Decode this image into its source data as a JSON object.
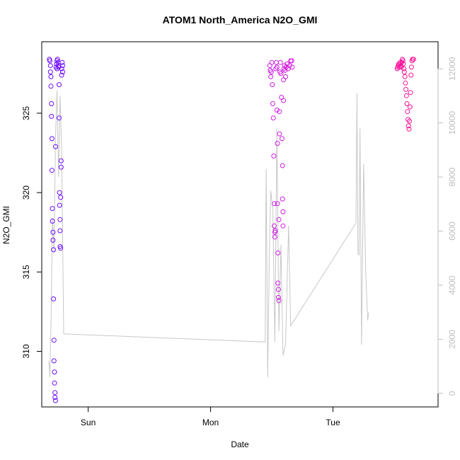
{
  "chart_data": {
    "type": "scatter",
    "title": "ATOM1 North_America N2O_GMI",
    "xlabel": "Date",
    "ylabel": "N2O_GMI",
    "x_ticks": [
      "Sun",
      "Mon",
      "Tue"
    ],
    "x_ticks_hours": [
      24,
      48,
      72
    ],
    "xlim_hours": [
      14.9,
      92.6
    ],
    "y_ticks": [
      310,
      315,
      320,
      325
    ],
    "ylim": [
      306.5,
      329.5
    ],
    "y2_ticks": [
      0,
      2000,
      4000,
      6000,
      8000,
      10000,
      12000
    ],
    "y2lim": [
      -500,
      13000
    ],
    "colors": {
      "start": "#6a0dff",
      "mid": "#c020ff",
      "end": "#ff1493",
      "altitude_line": "#c8c8c8",
      "axis": "#000000",
      "axis_right": "#bebebe"
    },
    "series": [
      {
        "values": [
          {
            "x": 16.4,
            "y": 328.4
          },
          {
            "x": 16.5,
            "y": 328.3
          },
          {
            "x": 16.6,
            "y": 328.0
          },
          {
            "x": 16.6,
            "y": 327.6
          },
          {
            "x": 16.7,
            "y": 327.3
          },
          {
            "x": 16.7,
            "y": 326.7
          },
          {
            "x": 16.8,
            "y": 325.6
          },
          {
            "x": 16.8,
            "y": 324.8
          },
          {
            "x": 16.9,
            "y": 323.4
          },
          {
            "x": 16.9,
            "y": 321.4
          },
          {
            "x": 17.0,
            "y": 319.0
          },
          {
            "x": 17.0,
            "y": 318.2
          },
          {
            "x": 17.1,
            "y": 317.5
          },
          {
            "x": 17.1,
            "y": 317.0
          },
          {
            "x": 17.2,
            "y": 316.4
          },
          {
            "x": 17.2,
            "y": 313.3
          },
          {
            "x": 17.3,
            "y": 310.7
          },
          {
            "x": 17.3,
            "y": 309.4
          },
          {
            "x": 17.4,
            "y": 308.7
          },
          {
            "x": 17.4,
            "y": 308.0
          },
          {
            "x": 17.5,
            "y": 307.4
          },
          {
            "x": 17.5,
            "y": 307.1
          },
          {
            "x": 17.6,
            "y": 306.9
          },
          {
            "x": 17.6,
            "y": 322.9
          },
          {
            "x": 17.7,
            "y": 327.9
          },
          {
            "x": 17.8,
            "y": 328.1
          },
          {
            "x": 17.9,
            "y": 328.3
          },
          {
            "x": 18.0,
            "y": 328.4
          },
          {
            "x": 18.1,
            "y": 328.2
          },
          {
            "x": 18.2,
            "y": 327.9
          },
          {
            "x": 18.3,
            "y": 326.8
          },
          {
            "x": 18.3,
            "y": 324.7
          },
          {
            "x": 18.4,
            "y": 320.0
          },
          {
            "x": 18.4,
            "y": 319.2
          },
          {
            "x": 18.5,
            "y": 318.3
          },
          {
            "x": 18.5,
            "y": 317.6
          },
          {
            "x": 18.5,
            "y": 316.6
          },
          {
            "x": 18.6,
            "y": 316.5
          },
          {
            "x": 18.6,
            "y": 319.7
          },
          {
            "x": 18.7,
            "y": 321.6
          },
          {
            "x": 18.7,
            "y": 322.0
          },
          {
            "x": 18.8,
            "y": 327.4
          },
          {
            "x": 18.8,
            "y": 327.8
          },
          {
            "x": 18.9,
            "y": 328.2
          },
          {
            "x": 19.0,
            "y": 328.0
          },
          {
            "x": 19.0,
            "y": 327.6
          },
          {
            "x": 18.2,
            "y": 328.0
          },
          {
            "x": 17.9,
            "y": 327.8
          },
          {
            "x": 59.6,
            "y": 328.0
          },
          {
            "x": 59.7,
            "y": 327.7
          },
          {
            "x": 59.8,
            "y": 327.3
          },
          {
            "x": 59.9,
            "y": 327.6
          },
          {
            "x": 60.0,
            "y": 328.2
          },
          {
            "x": 60.1,
            "y": 326.8
          },
          {
            "x": 60.2,
            "y": 325.6
          },
          {
            "x": 60.3,
            "y": 324.7
          },
          {
            "x": 60.4,
            "y": 322.3
          },
          {
            "x": 60.5,
            "y": 319.3
          },
          {
            "x": 60.5,
            "y": 317.9
          },
          {
            "x": 60.6,
            "y": 317.5
          },
          {
            "x": 60.6,
            "y": 317.2
          },
          {
            "x": 60.7,
            "y": 317.6
          },
          {
            "x": 60.8,
            "y": 327.8
          },
          {
            "x": 60.9,
            "y": 328.2
          },
          {
            "x": 61.0,
            "y": 327.9
          },
          {
            "x": 61.0,
            "y": 325.2
          },
          {
            "x": 61.1,
            "y": 323.1
          },
          {
            "x": 61.1,
            "y": 319.3
          },
          {
            "x": 61.2,
            "y": 316.2
          },
          {
            "x": 61.2,
            "y": 314.3
          },
          {
            "x": 61.3,
            "y": 313.9
          },
          {
            "x": 61.3,
            "y": 313.4
          },
          {
            "x": 61.4,
            "y": 313.2
          },
          {
            "x": 61.4,
            "y": 318.3
          },
          {
            "x": 61.5,
            "y": 323.7
          },
          {
            "x": 61.5,
            "y": 325.1
          },
          {
            "x": 61.6,
            "y": 327.6
          },
          {
            "x": 61.7,
            "y": 328.2
          },
          {
            "x": 61.8,
            "y": 327.5
          },
          {
            "x": 61.9,
            "y": 326.0
          },
          {
            "x": 62.0,
            "y": 323.4
          },
          {
            "x": 62.1,
            "y": 321.7
          },
          {
            "x": 62.1,
            "y": 319.6
          },
          {
            "x": 62.2,
            "y": 318.8
          },
          {
            "x": 62.2,
            "y": 317.9
          },
          {
            "x": 62.3,
            "y": 325.8
          },
          {
            "x": 62.3,
            "y": 327.1
          },
          {
            "x": 62.4,
            "y": 327.8
          },
          {
            "x": 62.5,
            "y": 328.0
          },
          {
            "x": 62.6,
            "y": 327.7
          },
          {
            "x": 62.7,
            "y": 327.3
          },
          {
            "x": 62.8,
            "y": 327.9
          },
          {
            "x": 63.0,
            "y": 328.1
          },
          {
            "x": 63.2,
            "y": 327.8
          },
          {
            "x": 63.5,
            "y": 328.0
          },
          {
            "x": 63.7,
            "y": 328.3
          },
          {
            "x": 63.9,
            "y": 328.3
          },
          {
            "x": 64.0,
            "y": 327.9
          },
          {
            "x": 84.6,
            "y": 327.8
          },
          {
            "x": 84.7,
            "y": 327.9
          },
          {
            "x": 84.8,
            "y": 328.0
          },
          {
            "x": 84.9,
            "y": 328.1
          },
          {
            "x": 85.0,
            "y": 327.9
          },
          {
            "x": 85.1,
            "y": 328.1
          },
          {
            "x": 85.2,
            "y": 328.2
          },
          {
            "x": 85.3,
            "y": 328.0
          },
          {
            "x": 85.4,
            "y": 327.9
          },
          {
            "x": 85.5,
            "y": 328.2
          },
          {
            "x": 85.6,
            "y": 328.4
          },
          {
            "x": 85.7,
            "y": 328.3
          },
          {
            "x": 85.8,
            "y": 328.1
          },
          {
            "x": 85.9,
            "y": 327.8
          },
          {
            "x": 86.0,
            "y": 327.6
          },
          {
            "x": 86.1,
            "y": 327.3
          },
          {
            "x": 86.2,
            "y": 326.9
          },
          {
            "x": 86.3,
            "y": 326.5
          },
          {
            "x": 86.4,
            "y": 326.1
          },
          {
            "x": 86.5,
            "y": 325.6
          },
          {
            "x": 86.6,
            "y": 325.1
          },
          {
            "x": 86.7,
            "y": 324.6
          },
          {
            "x": 86.8,
            "y": 324.2
          },
          {
            "x": 86.9,
            "y": 324.0
          },
          {
            "x": 87.0,
            "y": 324.5
          },
          {
            "x": 87.1,
            "y": 325.4
          },
          {
            "x": 87.2,
            "y": 326.3
          },
          {
            "x": 87.3,
            "y": 327.4
          },
          {
            "x": 87.4,
            "y": 327.9
          },
          {
            "x": 87.5,
            "y": 328.3
          },
          {
            "x": 87.6,
            "y": 328.4
          },
          {
            "x": 87.8,
            "y": 328.4
          }
        ]
      },
      {
        "axis": "right",
        "values": [
          {
            "x": 16.3,
            "y": 1200
          },
          {
            "x": 16.5,
            "y": 600
          },
          {
            "x": 16.7,
            "y": 2500
          },
          {
            "x": 17.0,
            "y": 6500
          },
          {
            "x": 17.3,
            "y": 5200
          },
          {
            "x": 17.6,
            "y": 9500
          },
          {
            "x": 17.9,
            "y": 11200
          },
          {
            "x": 18.2,
            "y": 8000
          },
          {
            "x": 18.5,
            "y": 11000
          },
          {
            "x": 18.8,
            "y": 9000
          },
          {
            "x": 19.2,
            "y": 2200
          },
          {
            "x": 58.7,
            "y": 1900
          },
          {
            "x": 58.9,
            "y": 8300
          },
          {
            "x": 59.2,
            "y": 600
          },
          {
            "x": 59.5,
            "y": 4800
          },
          {
            "x": 59.8,
            "y": 7500
          },
          {
            "x": 60.2,
            "y": 6800
          },
          {
            "x": 60.6,
            "y": 1900
          },
          {
            "x": 61.0,
            "y": 9800
          },
          {
            "x": 61.4,
            "y": 2300
          },
          {
            "x": 61.8,
            "y": 5500
          },
          {
            "x": 62.2,
            "y": 1400
          },
          {
            "x": 62.7,
            "y": 1800
          },
          {
            "x": 63.3,
            "y": 6200
          },
          {
            "x": 63.7,
            "y": 2500
          },
          {
            "x": 76.5,
            "y": 6300
          },
          {
            "x": 76.7,
            "y": 11100
          },
          {
            "x": 76.9,
            "y": 5200
          },
          {
            "x": 77.1,
            "y": 5100
          },
          {
            "x": 77.3,
            "y": 9800
          },
          {
            "x": 77.6,
            "y": 1800
          },
          {
            "x": 78.0,
            "y": 8500
          },
          {
            "x": 78.4,
            "y": 4500
          },
          {
            "x": 78.8,
            "y": 2700
          },
          {
            "x": 79.0,
            "y": 3000
          }
        ]
      }
    ]
  }
}
